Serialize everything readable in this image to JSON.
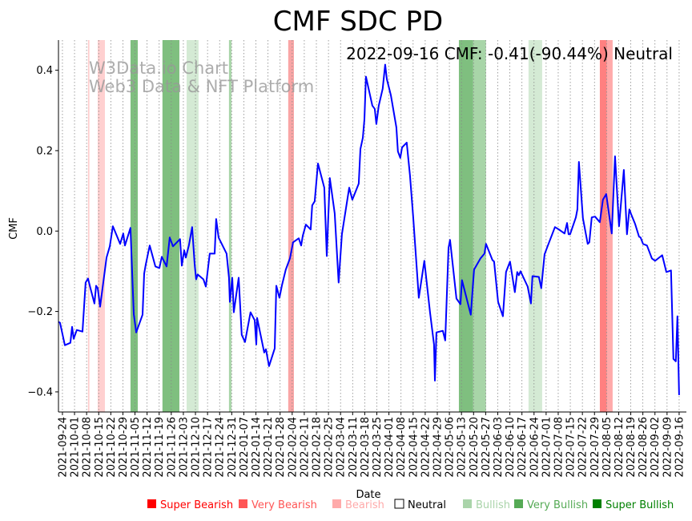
{
  "chart_data": {
    "type": "line",
    "title": "CMF SDC PD",
    "annotation": "2022-09-16 CMF: -0.41(-90.44%) Neutral",
    "watermark": [
      "W3Data.io Chart",
      "Web3 Data & NFT Platform"
    ],
    "xlabel": "Date",
    "ylabel": "CMF",
    "x_origin": "2021-09-24",
    "x_unit": "days since x_origin",
    "xlim_days": [
      -2.3,
      361.2
    ],
    "ylim": [
      -0.45,
      0.475
    ],
    "yticks": [
      "0.4",
      "0.2",
      "0.0",
      "−0.2",
      "−0.4"
    ],
    "ytick_values": [
      0.4,
      0.2,
      0.0,
      -0.2,
      -0.4
    ],
    "xticks": [
      "2021-09-24",
      "2021-10-01",
      "2021-10-08",
      "2021-10-15",
      "2021-10-22",
      "2021-10-29",
      "2021-11-05",
      "2021-11-12",
      "2021-11-19",
      "2021-11-26",
      "2021-12-03",
      "2021-12-10",
      "2021-12-17",
      "2021-12-24",
      "2021-12-31",
      "2022-01-07",
      "2022-01-14",
      "2022-01-21",
      "2022-01-28",
      "2022-02-04",
      "2022-02-11",
      "2022-02-18",
      "2022-02-25",
      "2022-03-04",
      "2022-03-11",
      "2022-03-18",
      "2022-03-25",
      "2022-04-01",
      "2022-04-08",
      "2022-04-15",
      "2022-04-22",
      "2022-04-29",
      "2022-05-06",
      "2022-05-13",
      "2022-05-20",
      "2022-05-27",
      "2022-06-03",
      "2022-06-10",
      "2022-06-17",
      "2022-06-24",
      "2022-07-01",
      "2022-07-08",
      "2022-07-15",
      "2022-07-22",
      "2022-07-29",
      "2022-08-05",
      "2022-08-12",
      "2022-08-19",
      "2022-08-26",
      "2022-09-02",
      "2022-09-09",
      "2022-09-16"
    ],
    "line_color": "#0000ff",
    "series": [
      {
        "name": "CMF",
        "points": [
          [
            -2.3,
            -0.226
          ],
          [
            -1.4,
            -0.228
          ],
          [
            1.4,
            -0.284
          ],
          [
            4.6,
            -0.278
          ],
          [
            5.6,
            -0.238
          ],
          [
            6.5,
            -0.268
          ],
          [
            8.3,
            -0.246
          ],
          [
            11.6,
            -0.25
          ],
          [
            13.4,
            -0.128
          ],
          [
            14.8,
            -0.118
          ],
          [
            16.2,
            -0.142
          ],
          [
            18.5,
            -0.18
          ],
          [
            19.5,
            -0.136
          ],
          [
            20.4,
            -0.142
          ],
          [
            21.8,
            -0.188
          ],
          [
            25.5,
            -0.066
          ],
          [
            27.4,
            -0.038
          ],
          [
            29.2,
            0.012
          ],
          [
            33.4,
            -0.032
          ],
          [
            35.2,
            -0.006
          ],
          [
            36.2,
            -0.036
          ],
          [
            39.4,
            0.008
          ],
          [
            41.3,
            -0.206
          ],
          [
            42.7,
            -0.252
          ],
          [
            46.4,
            -0.208
          ],
          [
            47.3,
            -0.106
          ],
          [
            48.2,
            -0.084
          ],
          [
            50.5,
            -0.036
          ],
          [
            53.8,
            -0.088
          ],
          [
            56.1,
            -0.092
          ],
          [
            57.5,
            -0.064
          ],
          [
            60.3,
            -0.088
          ],
          [
            62.1,
            -0.016
          ],
          [
            64.0,
            -0.038
          ],
          [
            68.1,
            -0.02
          ],
          [
            69.1,
            -0.086
          ],
          [
            70.5,
            -0.048
          ],
          [
            71.4,
            -0.066
          ],
          [
            73.2,
            -0.036
          ],
          [
            75.1,
            0.01
          ],
          [
            76.5,
            -0.082
          ],
          [
            77.4,
            -0.12
          ],
          [
            78.3,
            -0.108
          ],
          [
            81.6,
            -0.12
          ],
          [
            83.0,
            -0.138
          ],
          [
            85.3,
            -0.056
          ],
          [
            88.1,
            -0.056
          ],
          [
            89.0,
            0.03
          ],
          [
            90.4,
            -0.016
          ],
          [
            95.0,
            -0.056
          ],
          [
            96.4,
            -0.116
          ],
          [
            96.9,
            -0.176
          ],
          [
            98.3,
            -0.116
          ],
          [
            99.2,
            -0.202
          ],
          [
            102.0,
            -0.116
          ],
          [
            103.8,
            -0.258
          ],
          [
            105.7,
            -0.276
          ],
          [
            108.9,
            -0.202
          ],
          [
            111.3,
            -0.222
          ],
          [
            112.2,
            -0.282
          ],
          [
            112.7,
            -0.216
          ],
          [
            116.8,
            -0.302
          ],
          [
            117.8,
            -0.294
          ],
          [
            119.6,
            -0.336
          ],
          [
            122.9,
            -0.292
          ],
          [
            123.8,
            -0.136
          ],
          [
            125.6,
            -0.166
          ],
          [
            127.0,
            -0.136
          ],
          [
            129.3,
            -0.096
          ],
          [
            131.7,
            -0.068
          ],
          [
            133.5,
            -0.028
          ],
          [
            136.8,
            -0.018
          ],
          [
            138.2,
            -0.036
          ],
          [
            139.1,
            -0.012
          ],
          [
            140.9,
            0.016
          ],
          [
            143.7,
            0.004
          ],
          [
            144.6,
            0.064
          ],
          [
            146.0,
            0.074
          ],
          [
            147.9,
            0.168
          ],
          [
            151.6,
            0.108
          ],
          [
            153.0,
            -0.062
          ],
          [
            154.8,
            0.132
          ],
          [
            157.6,
            0.044
          ],
          [
            159.9,
            -0.128
          ],
          [
            161.8,
            -0.008
          ],
          [
            166.0,
            0.108
          ],
          [
            167.8,
            0.078
          ],
          [
            171.5,
            0.118
          ],
          [
            172.5,
            0.204
          ],
          [
            173.9,
            0.232
          ],
          [
            174.8,
            0.278
          ],
          [
            175.7,
            0.384
          ],
          [
            179.4,
            0.312
          ],
          [
            180.8,
            0.304
          ],
          [
            181.7,
            0.266
          ],
          [
            183.1,
            0.312
          ],
          [
            185.4,
            0.354
          ],
          [
            186.8,
            0.414
          ],
          [
            187.8,
            0.378
          ],
          [
            190.1,
            0.338
          ],
          [
            193.3,
            0.258
          ],
          [
            194.2,
            0.198
          ],
          [
            195.6,
            0.182
          ],
          [
            196.6,
            0.208
          ],
          [
            199.3,
            0.22
          ],
          [
            201.2,
            0.138
          ],
          [
            203.1,
            0.032
          ],
          [
            206.3,
            -0.166
          ],
          [
            209.5,
            -0.074
          ],
          [
            212.8,
            -0.202
          ],
          [
            215.1,
            -0.282
          ],
          [
            215.6,
            -0.372
          ],
          [
            216.5,
            -0.252
          ],
          [
            220.2,
            -0.248
          ],
          [
            221.6,
            -0.272
          ],
          [
            223.5,
            -0.042
          ],
          [
            224.4,
            -0.022
          ],
          [
            228.1,
            -0.168
          ],
          [
            230.4,
            -0.182
          ],
          [
            231.3,
            -0.122
          ],
          [
            236.4,
            -0.208
          ],
          [
            238.3,
            -0.096
          ],
          [
            242.0,
            -0.068
          ],
          [
            244.3,
            -0.056
          ],
          [
            245.2,
            -0.032
          ],
          [
            248.9,
            -0.072
          ],
          [
            249.9,
            -0.076
          ],
          [
            252.2,
            -0.176
          ],
          [
            255.0,
            -0.212
          ],
          [
            256.8,
            -0.102
          ],
          [
            259.1,
            -0.076
          ],
          [
            261.9,
            -0.152
          ],
          [
            263.3,
            -0.102
          ],
          [
            264.2,
            -0.11
          ],
          [
            265.2,
            -0.1
          ],
          [
            269.3,
            -0.138
          ],
          [
            271.2,
            -0.18
          ],
          [
            272.1,
            -0.112
          ],
          [
            275.8,
            -0.114
          ],
          [
            277.2,
            -0.142
          ],
          [
            279.1,
            -0.058
          ],
          [
            280.5,
            -0.042
          ],
          [
            285.1,
            0.01
          ],
          [
            287.4,
            0.004
          ],
          [
            290.7,
            -0.006
          ],
          [
            292.1,
            0.02
          ],
          [
            293.0,
            -0.008
          ],
          [
            293.9,
            -0.008
          ],
          [
            297.2,
            0.034
          ],
          [
            298.1,
            0.054
          ],
          [
            299.0,
            0.172
          ],
          [
            301.3,
            0.032
          ],
          [
            304.1,
            -0.032
          ],
          [
            305.0,
            -0.028
          ],
          [
            306.4,
            0.034
          ],
          [
            308.3,
            0.036
          ],
          [
            311.1,
            0.022
          ],
          [
            312.9,
            0.078
          ],
          [
            314.8,
            0.092
          ],
          [
            318.0,
            -0.006
          ],
          [
            319.9,
            0.186
          ],
          [
            322.2,
            0.012
          ],
          [
            325.0,
            0.152
          ],
          [
            326.8,
            -0.008
          ],
          [
            328.2,
            0.054
          ],
          [
            329.2,
            0.042
          ],
          [
            331.5,
            0.018
          ],
          [
            333.8,
            -0.014
          ],
          [
            334.7,
            -0.016
          ],
          [
            336.1,
            -0.032
          ],
          [
            338.4,
            -0.036
          ],
          [
            341.2,
            -0.068
          ],
          [
            343.1,
            -0.074
          ],
          [
            347.2,
            -0.06
          ],
          [
            349.6,
            -0.102
          ],
          [
            352.3,
            -0.098
          ],
          [
            353.7,
            -0.318
          ],
          [
            355.1,
            -0.324
          ],
          [
            356.0,
            -0.212
          ],
          [
            357.0,
            -0.408
          ]
        ]
      }
    ],
    "bands": [
      {
        "from": 14.8,
        "to": 15.6,
        "signal": "Bearish",
        "color": "#ffcccc"
      },
      {
        "from": 20.4,
        "to": 24.6,
        "signal": "Bearish",
        "color": "#ffd0d0"
      },
      {
        "from": 39.4,
        "to": 43.6,
        "signal": "Very Bullish",
        "color": "#7fbf7f"
      },
      {
        "from": 57.9,
        "to": 67.7,
        "signal": "Very Bullish",
        "color": "#7fbf7f"
      },
      {
        "from": 71.9,
        "to": 78.8,
        "signal": "Bullish",
        "color": "#d4ead4"
      },
      {
        "from": 96.4,
        "to": 97.8,
        "signal": "Bullish",
        "color": "#a8d5a8"
      },
      {
        "from": 130.7,
        "to": 134.0,
        "signal": "Bearish",
        "color": "#f9a5a5"
      },
      {
        "from": 229.5,
        "to": 237.8,
        "signal": "Very Bullish",
        "color": "#7fbf7f"
      },
      {
        "from": 237.8,
        "to": 245.2,
        "signal": "Bullish",
        "color": "#a8d5a8"
      },
      {
        "from": 269.8,
        "to": 277.7,
        "signal": "Bullish",
        "color": "#d4ead4"
      },
      {
        "from": 311.1,
        "to": 315.2,
        "signal": "Very Bearish",
        "color": "#ff8080"
      },
      {
        "from": 315.2,
        "to": 318.5,
        "signal": "Bearish",
        "color": "#ffaaaa"
      }
    ],
    "legend_position": "bottom",
    "legend": [
      {
        "label": "Super Bearish",
        "color": "#ff0000"
      },
      {
        "label": "Very Bearish",
        "color": "#ff5555"
      },
      {
        "label": "Bearish",
        "color": "#ffaaaa"
      },
      {
        "label": "Neutral",
        "color": "#ffffff",
        "text_color": "#000000"
      },
      {
        "label": "Bullish",
        "color": "#aad4aa"
      },
      {
        "label": "Very Bullish",
        "color": "#55aa55"
      },
      {
        "label": "Super Bullish",
        "color": "#008000"
      }
    ],
    "grid": "vertical dotted at x ticks"
  }
}
